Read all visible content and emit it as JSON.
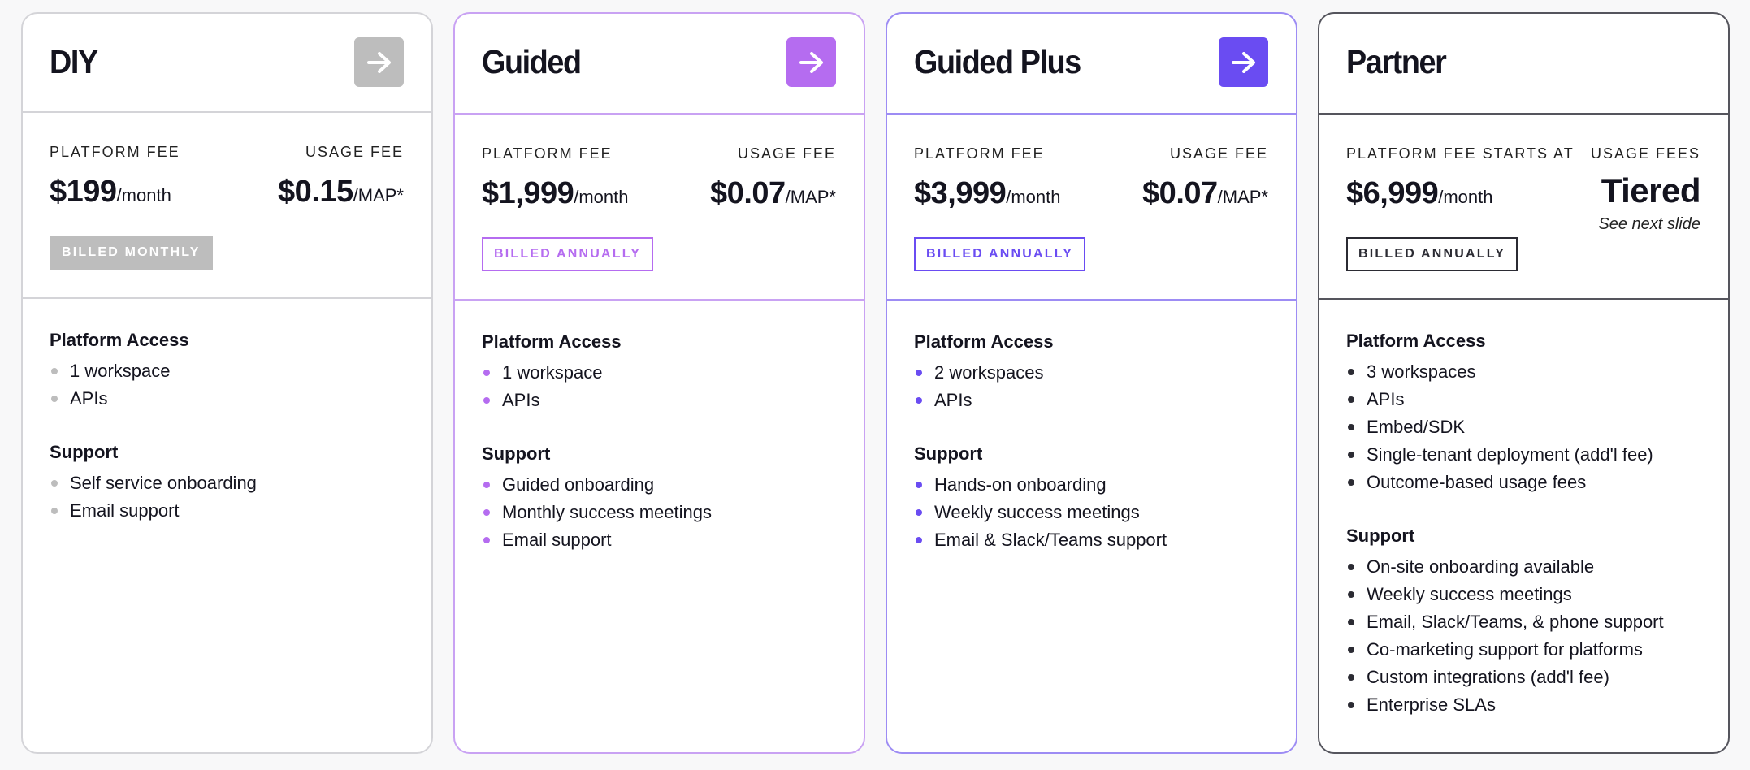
{
  "colors": {
    "diy_accent": "#bdbdbd",
    "guided_accent": "#b56cf0",
    "guided_plus_accent": "#6a4cf2",
    "partner_accent": "#2b2b33"
  },
  "icons": {
    "arrow": "arrow-right-icon"
  },
  "plans": [
    {
      "name": "DIY",
      "platform_fee_label": "PLATFORM FEE",
      "platform_fee_amount": "$199",
      "platform_fee_unit": "/month",
      "usage_fee_label": "USAGE FEE",
      "usage_fee_amount": "$0.15",
      "usage_fee_unit": "/MAP*",
      "billing": "BILLED MONTHLY",
      "access_title": "Platform Access",
      "access_items": [
        "1 workspace",
        "APIs"
      ],
      "support_title": "Support",
      "support_items": [
        "Self service onboarding",
        "Email support"
      ]
    },
    {
      "name": "Guided",
      "platform_fee_label": "PLATFORM FEE",
      "platform_fee_amount": "$1,999",
      "platform_fee_unit": "/month",
      "usage_fee_label": "USAGE FEE",
      "usage_fee_amount": "$0.07",
      "usage_fee_unit": "/MAP*",
      "billing": "BILLED ANNUALLY",
      "access_title": "Platform Access",
      "access_items": [
        "1 workspace",
        "APIs"
      ],
      "support_title": "Support",
      "support_items": [
        "Guided onboarding",
        "Monthly success meetings",
        "Email support"
      ]
    },
    {
      "name": "Guided Plus",
      "platform_fee_label": "PLATFORM FEE",
      "platform_fee_amount": "$3,999",
      "platform_fee_unit": "/month",
      "usage_fee_label": "USAGE FEE",
      "usage_fee_amount": "$0.07",
      "usage_fee_unit": "/MAP*",
      "billing": "BILLED ANNUALLY",
      "access_title": "Platform Access",
      "access_items": [
        "2 workspaces",
        "APIs"
      ],
      "support_title": "Support",
      "support_items": [
        "Hands-on onboarding",
        "Weekly success meetings",
        "Email & Slack/Teams support"
      ]
    },
    {
      "name": "Partner",
      "platform_fee_label": "PLATFORM FEE STARTS AT",
      "platform_fee_amount": "$6,999",
      "platform_fee_unit": "/month",
      "usage_fee_label": "USAGE FEES",
      "usage_fee_amount": "Tiered",
      "usage_fee_note": "See next slide",
      "billing": "BILLED ANNUALLY",
      "access_title": "Platform Access",
      "access_items": [
        "3 workspaces",
        "APIs",
        "Embed/SDK",
        "Single-tenant deployment (add'l fee)",
        "Outcome-based usage fees"
      ],
      "support_title": "Support",
      "support_items": [
        "On-site onboarding available",
        "Weekly success meetings",
        "Email, Slack/Teams, & phone support",
        "Co-marketing support for platforms",
        "Custom integrations (add'l fee)",
        "Enterprise SLAs"
      ]
    }
  ]
}
